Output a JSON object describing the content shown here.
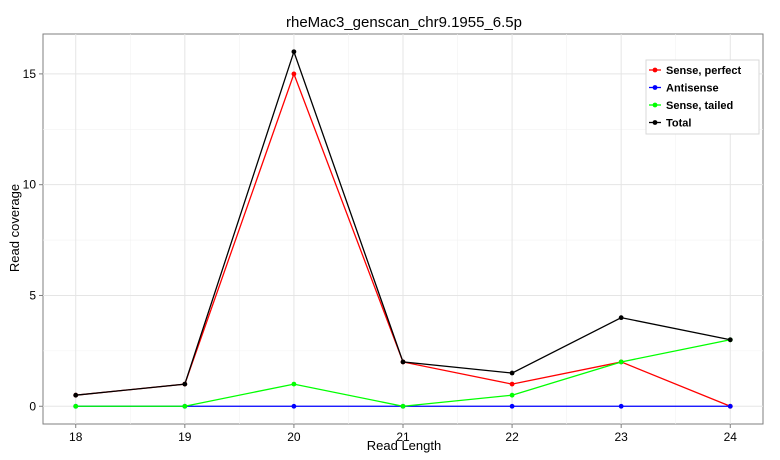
{
  "chart_data": {
    "type": "line",
    "title": "rheMac3_genscan_chr9.1955_6.5p",
    "xlabel": "Read Length",
    "ylabel": "Read coverage",
    "x": [
      18,
      19,
      20,
      21,
      22,
      23,
      24
    ],
    "xlim": [
      17.7,
      24.3
    ],
    "ylim": [
      -0.8,
      16.8
    ],
    "yticks": [
      0,
      5,
      10,
      15
    ],
    "grid": true,
    "legend_position": "top-right",
    "series": [
      {
        "name": "Sense, perfect",
        "color": "#ff0000",
        "values": [
          0.5,
          1,
          15,
          2,
          1,
          2,
          0
        ]
      },
      {
        "name": "Antisense",
        "color": "#0000ff",
        "values": [
          0,
          0,
          0,
          0,
          0,
          0,
          0
        ]
      },
      {
        "name": "Sense, tailed",
        "color": "#00ff00",
        "values": [
          0,
          0,
          1,
          0,
          0.5,
          2,
          3
        ]
      },
      {
        "name": "Total",
        "color": "#000000",
        "values": [
          0.5,
          1,
          16,
          2,
          1.5,
          4,
          3
        ]
      }
    ]
  }
}
